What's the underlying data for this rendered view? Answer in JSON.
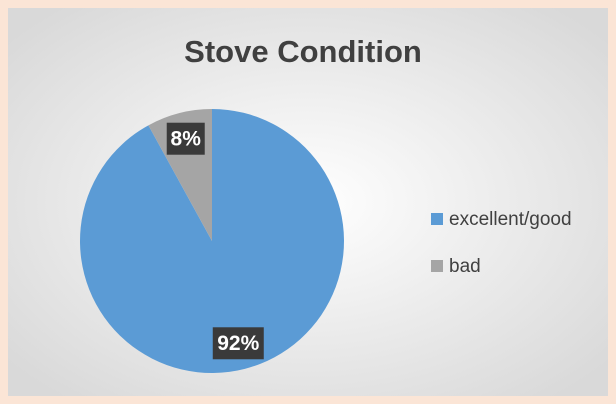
{
  "chart_data": {
    "type": "pie",
    "title": "Stove Condition",
    "categories": [
      "excellent/good",
      "bad"
    ],
    "values": [
      92,
      8
    ],
    "value_labels": [
      "92%",
      "8%"
    ],
    "colors": [
      "#5b9bd5",
      "#a5a5a5"
    ],
    "legend": "right"
  }
}
